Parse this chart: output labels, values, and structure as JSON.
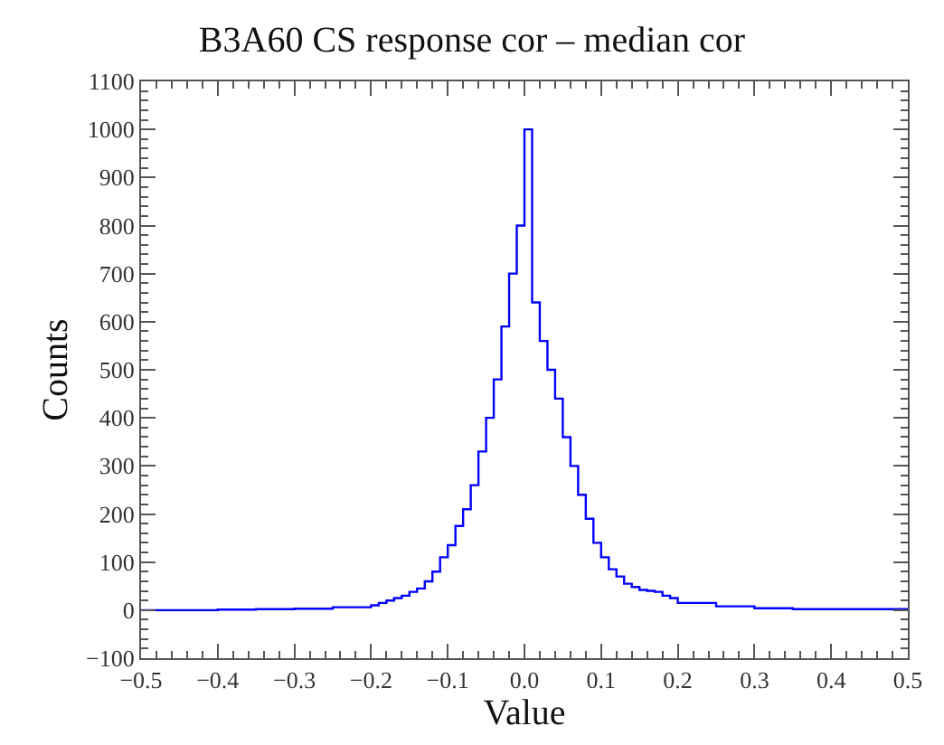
{
  "chart_data": {
    "type": "histogram",
    "title": "B3A60 CS response cor – median cor",
    "xlabel": "Value",
    "ylabel": "Counts",
    "color": "#0000ff",
    "bins": [
      -0.5,
      -0.45,
      -0.4,
      -0.35,
      -0.3,
      -0.25,
      -0.2,
      -0.19,
      -0.18,
      -0.17,
      -0.16,
      -0.15,
      -0.14,
      -0.13,
      -0.12,
      -0.11,
      -0.1,
      -0.09,
      -0.08,
      -0.07,
      -0.06,
      -0.05,
      -0.04,
      -0.03,
      -0.02,
      -0.01,
      0.0,
      0.01,
      0.02,
      0.03,
      0.04,
      0.05,
      0.06,
      0.07,
      0.08,
      0.09,
      0.1,
      0.11,
      0.12,
      0.13,
      0.14,
      0.15,
      0.16,
      0.17,
      0.18,
      0.19,
      0.2,
      0.25,
      0.3,
      0.35,
      0.4,
      0.45,
      0.5
    ],
    "values": [
      0,
      0,
      1,
      2,
      3,
      6,
      10,
      15,
      20,
      25,
      30,
      38,
      45,
      60,
      80,
      110,
      135,
      175,
      210,
      260,
      330,
      400,
      480,
      590,
      700,
      800,
      1000,
      640,
      560,
      500,
      440,
      360,
      300,
      240,
      190,
      140,
      110,
      85,
      70,
      55,
      48,
      42,
      40,
      38,
      30,
      25,
      15,
      8,
      4,
      2,
      2,
      2
    ],
    "xlim": [
      -0.5,
      0.5
    ],
    "xticks": [
      {
        "value": -0.5,
        "label": "−0.5"
      },
      {
        "value": -0.4,
        "label": "−0.4"
      },
      {
        "value": -0.3,
        "label": "−0.3"
      },
      {
        "value": -0.2,
        "label": "−0.2"
      },
      {
        "value": -0.1,
        "label": "−0.1"
      },
      {
        "value": 0,
        "label": "0.0"
      },
      0.1,
      0.2,
      0.3,
      0.4,
      0.5
    ],
    "ylim": [
      -100,
      1100
    ],
    "yticks": [
      {
        "value": -100,
        "label": "−100"
      },
      0,
      100,
      200,
      300,
      400,
      500,
      600,
      700,
      800,
      900,
      1000,
      1100
    ]
  }
}
